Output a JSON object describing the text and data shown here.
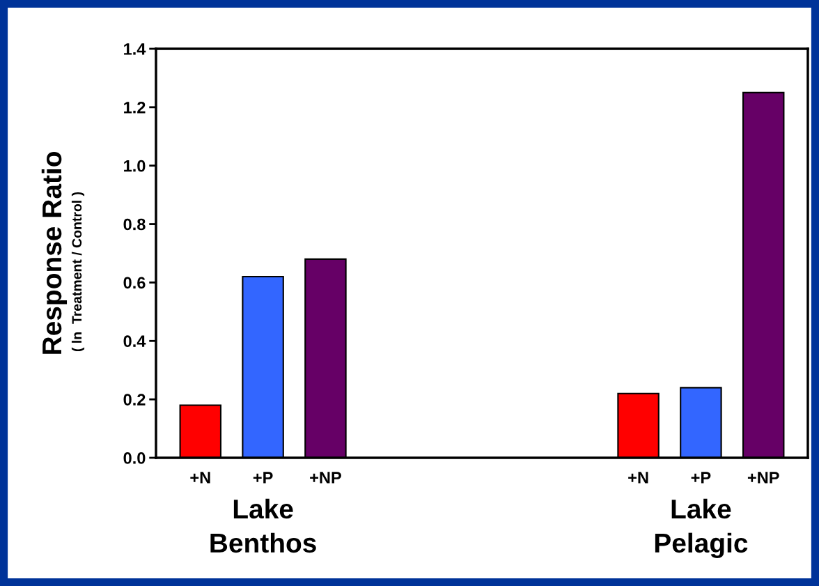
{
  "chart_data": {
    "type": "bar",
    "categories": [
      "+N",
      "+P",
      "+NP",
      null,
      null,
      null,
      null,
      "+N",
      "+P",
      "+NP"
    ],
    "values": [
      0.18,
      0.62,
      0.68,
      null,
      null,
      null,
      null,
      0.22,
      0.24,
      1.25
    ],
    "colors": [
      "#ff0000",
      "#3366ff",
      "#660066",
      null,
      null,
      null,
      null,
      "#ff0000",
      "#3366ff",
      "#660066"
    ],
    "ylabel": "Response Ratio",
    "annotations": [
      "( ln  Treatment / Control )",
      "Lake\nBenthos",
      "Lake\nPelagic"
    ],
    "ylim": [
      0,
      1.4
    ],
    "yticks": [
      {
        "value": 0,
        "label": "0.0"
      },
      0.2,
      0.4,
      0.6,
      0.8,
      {
        "value": 1,
        "label": "1.0"
      },
      1.2,
      1.4
    ],
    "grid": false,
    "legend": false
  }
}
